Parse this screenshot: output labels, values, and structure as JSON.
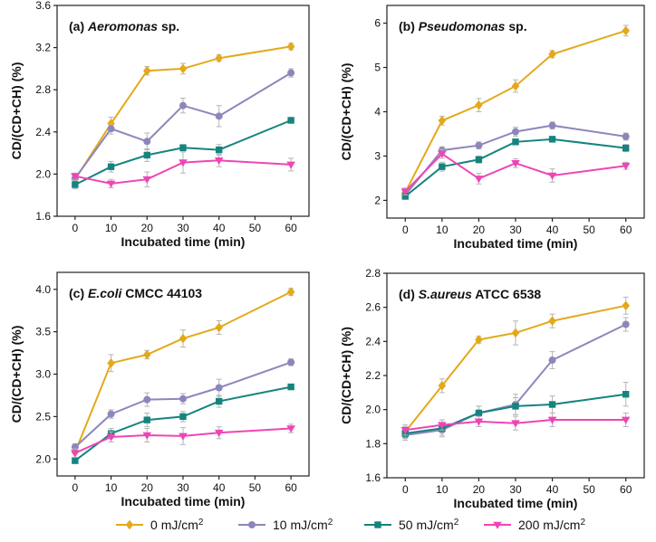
{
  "chart_data": [
    {
      "type": "line",
      "title_prefix": "(a)",
      "title_organism": "Aeromonas",
      "title_suffix": "sp.",
      "xlabel": "Incubated time (min)",
      "ylabel": "CD/(CD+CH) (%)",
      "x": [
        0,
        10,
        20,
        30,
        40,
        60
      ],
      "xticks": [
        0,
        10,
        20,
        30,
        40,
        50,
        60
      ],
      "xtick_labels": [
        "0",
        "10",
        "20",
        "30",
        "40",
        "50",
        "60"
      ],
      "xlim": [
        -5,
        65
      ],
      "ylim": [
        1.6,
        3.6
      ],
      "yticks": [
        1.6,
        2.0,
        2.4,
        2.8,
        3.2,
        3.6
      ],
      "ytick_labels": [
        "1.6",
        "2.0",
        "2.4",
        "2.8",
        "3.2",
        "3.6"
      ],
      "series": [
        {
          "name": "0 mJ/cm2",
          "values": [
            1.95,
            2.48,
            2.98,
            3.0,
            3.1,
            3.21
          ],
          "errors": [
            0.05,
            0.06,
            0.04,
            0.05,
            0.03,
            0.03
          ]
        },
        {
          "name": "10 mJ/cm2",
          "values": [
            1.96,
            2.43,
            2.31,
            2.65,
            2.55,
            2.96
          ],
          "errors": [
            0.04,
            0.05,
            0.08,
            0.07,
            0.1,
            0.04
          ]
        },
        {
          "name": "50 mJ/cm2",
          "values": [
            1.9,
            2.07,
            2.18,
            2.25,
            2.23,
            2.51
          ],
          "errors": [
            0.04,
            0.05,
            0.06,
            0.03,
            0.05,
            0.02
          ]
        },
        {
          "name": "200 mJ/cm2",
          "values": [
            1.98,
            1.91,
            1.95,
            2.11,
            2.13,
            2.09
          ],
          "errors": [
            0.03,
            0.04,
            0.07,
            0.1,
            0.06,
            0.06
          ]
        }
      ]
    },
    {
      "type": "line",
      "title_prefix": "(b)",
      "title_organism": "Pseudomonas",
      "title_suffix": "sp.",
      "xlabel": "Incubated time (min)",
      "ylabel": "CD/(CD+CH) (%)",
      "x": [
        0,
        10,
        20,
        30,
        40,
        60
      ],
      "xticks": [
        0,
        10,
        20,
        30,
        40,
        50,
        60
      ],
      "xtick_labels": [
        "0",
        "10",
        "20",
        "30",
        "40",
        "50",
        "60"
      ],
      "xlim": [
        -5,
        65
      ],
      "ylim": [
        1.6,
        6.4
      ],
      "yticks": [
        2,
        3,
        4,
        5,
        6
      ],
      "ytick_labels": [
        "2",
        "3",
        "4",
        "5",
        "6"
      ],
      "series": [
        {
          "name": "0 mJ/cm2",
          "values": [
            2.18,
            3.8,
            4.15,
            4.58,
            5.3,
            5.83
          ],
          "errors": [
            0.08,
            0.1,
            0.15,
            0.14,
            0.08,
            0.12
          ]
        },
        {
          "name": "10 mJ/cm2",
          "values": [
            2.12,
            3.13,
            3.24,
            3.55,
            3.69,
            3.44
          ],
          "errors": [
            0.08,
            0.08,
            0.08,
            0.1,
            0.08,
            0.08
          ]
        },
        {
          "name": "50 mJ/cm2",
          "values": [
            2.09,
            2.76,
            2.92,
            3.32,
            3.38,
            3.18
          ],
          "errors": [
            0.05,
            0.1,
            0.08,
            0.06,
            0.05,
            0.08
          ]
        },
        {
          "name": "200 mJ/cm2",
          "values": [
            2.2,
            3.05,
            2.49,
            2.84,
            2.56,
            2.78
          ],
          "errors": [
            0.08,
            0.1,
            0.12,
            0.1,
            0.15,
            0.08
          ]
        }
      ]
    },
    {
      "type": "line",
      "title_prefix": "(c)",
      "title_organism": "E.coli",
      "title_suffix": "CMCC 44103",
      "xlabel": "Incubated time (min)",
      "ylabel": "CD/(CD+CH) (%)",
      "x": [
        0,
        10,
        20,
        30,
        40,
        60
      ],
      "xticks": [
        0,
        10,
        20,
        30,
        40,
        50,
        60
      ],
      "xtick_labels": [
        "0",
        "10",
        "20",
        "30",
        "40",
        "50",
        "60"
      ],
      "xlim": [
        -5,
        65
      ],
      "ylim": [
        1.8,
        4.2
      ],
      "yticks": [
        2.0,
        2.5,
        3.0,
        3.5,
        4.0
      ],
      "ytick_labels": [
        "2.0",
        "2.5",
        "3.0",
        "3.5",
        "4.0"
      ],
      "series": [
        {
          "name": "0 mJ/cm2",
          "values": [
            2.08,
            3.13,
            3.23,
            3.42,
            3.55,
            3.97
          ],
          "errors": [
            0.06,
            0.1,
            0.05,
            0.1,
            0.08,
            0.04
          ]
        },
        {
          "name": "10 mJ/cm2",
          "values": [
            2.14,
            2.53,
            2.7,
            2.71,
            2.84,
            3.14
          ],
          "errors": [
            0.04,
            0.05,
            0.08,
            0.06,
            0.1,
            0.04
          ]
        },
        {
          "name": "50 mJ/cm2",
          "values": [
            1.98,
            2.3,
            2.46,
            2.5,
            2.68,
            2.85
          ],
          "errors": [
            0.03,
            0.06,
            0.08,
            0.06,
            0.07,
            0.03
          ]
        },
        {
          "name": "200 mJ/cm2",
          "values": [
            2.07,
            2.26,
            2.28,
            2.27,
            2.31,
            2.36
          ],
          "errors": [
            0.05,
            0.06,
            0.08,
            0.1,
            0.07,
            0.05
          ]
        }
      ]
    },
    {
      "type": "line",
      "title_prefix": "(d)",
      "title_organism": "S.aureus",
      "title_suffix": "ATCC 6538",
      "xlabel": "Incubated time (min)",
      "ylabel": "CD/(CD+CH) (%)",
      "x": [
        0,
        10,
        20,
        30,
        40,
        60
      ],
      "xticks": [
        0,
        10,
        20,
        30,
        40,
        50,
        60
      ],
      "xtick_labels": [
        "0",
        "10",
        "20",
        "30",
        "40",
        "50",
        "60"
      ],
      "xlim": [
        -5,
        65
      ],
      "ylim": [
        1.6,
        2.8
      ],
      "yticks": [
        1.6,
        1.8,
        2.0,
        2.2,
        2.4,
        2.6,
        2.8
      ],
      "ytick_labels": [
        "1.6",
        "1.8",
        "2.0",
        "2.2",
        "2.4",
        "2.6",
        "2.8"
      ],
      "series": [
        {
          "name": "0 mJ/cm2",
          "values": [
            1.87,
            2.14,
            2.41,
            2.45,
            2.52,
            2.61
          ],
          "errors": [
            0.03,
            0.04,
            0.02,
            0.07,
            0.04,
            0.05
          ]
        },
        {
          "name": "10 mJ/cm2",
          "values": [
            1.85,
            1.88,
            1.98,
            2.03,
            2.29,
            2.5
          ],
          "errors": [
            0.03,
            0.03,
            0.04,
            0.06,
            0.05,
            0.04
          ]
        },
        {
          "name": "50 mJ/cm2",
          "values": [
            1.86,
            1.89,
            1.98,
            2.02,
            2.03,
            2.09
          ],
          "errors": [
            0.03,
            0.05,
            0.04,
            0.05,
            0.05,
            0.07
          ]
        },
        {
          "name": "200 mJ/cm2",
          "values": [
            1.88,
            1.91,
            1.93,
            1.92,
            1.94,
            1.94
          ],
          "errors": [
            0.03,
            0.03,
            0.03,
            0.04,
            0.04,
            0.04
          ]
        }
      ]
    }
  ],
  "legend": {
    "items": [
      {
        "value": "0",
        "unit": "mJ/cm",
        "sup": "2",
        "color": "#E3A91A",
        "marker": "diamond"
      },
      {
        "value": "10",
        "unit": "mJ/cm",
        "sup": "2",
        "color": "#8D86BD",
        "marker": "circle"
      },
      {
        "value": "50",
        "unit": "mJ/cm",
        "sup": "2",
        "color": "#15847E",
        "marker": "square"
      },
      {
        "value": "200",
        "unit": "mJ/cm",
        "sup": "2",
        "color": "#EE45B6",
        "marker": "triangle-down"
      }
    ]
  },
  "colors": {
    "series": [
      "#E3A91A",
      "#8D86BD",
      "#15847E",
      "#EE45B6"
    ],
    "errorbar": "#b5b5b5",
    "axis": "#222222"
  },
  "markers": [
    "diamond",
    "circle",
    "square",
    "triangle-down"
  ]
}
